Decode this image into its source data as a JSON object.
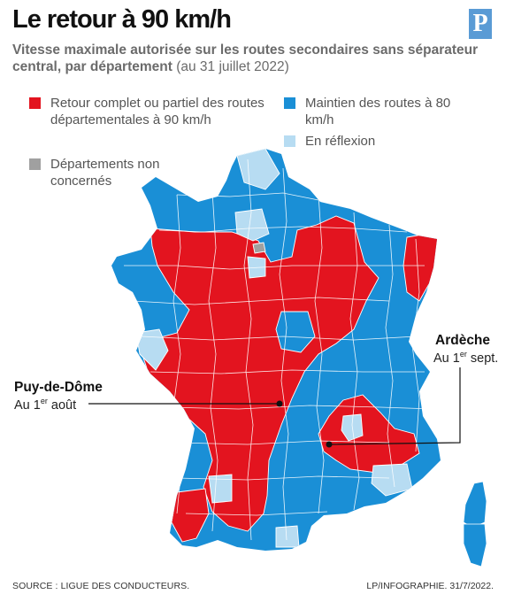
{
  "title": "Le retour à 90 km/h",
  "logo_letter": "P",
  "subtitle": {
    "bold": "Vitesse maximale autorisée sur les routes secondaires sans séparateur central, par département",
    "light": "(au 31 juillet 2022)"
  },
  "legend": [
    {
      "label": "Retour complet ou partiel des routes départementales à 90 km/h",
      "color": "#e3141f"
    },
    {
      "label": "Maintien des routes à 80 km/h",
      "color": "#1a8fd6"
    },
    {
      "label": "En réflexion",
      "color": "#b7dcf2"
    },
    {
      "label": "Départements non concernés",
      "color": "#a0a0a0"
    }
  ],
  "callouts": {
    "puy": {
      "name": "Puy-de-Dôme",
      "date_prefix": "Au 1",
      "date_sup": "er",
      "date_suffix": " août"
    },
    "ardeche": {
      "name": "Ardèche",
      "date_prefix": "Au 1",
      "date_sup": "er",
      "date_suffix": " sept."
    }
  },
  "footer": {
    "source": "SOURCE : LIGUE DES CONDUCTEURS.",
    "credit": "LP/INFOGRAPHIE.   31/7/2022."
  }
}
